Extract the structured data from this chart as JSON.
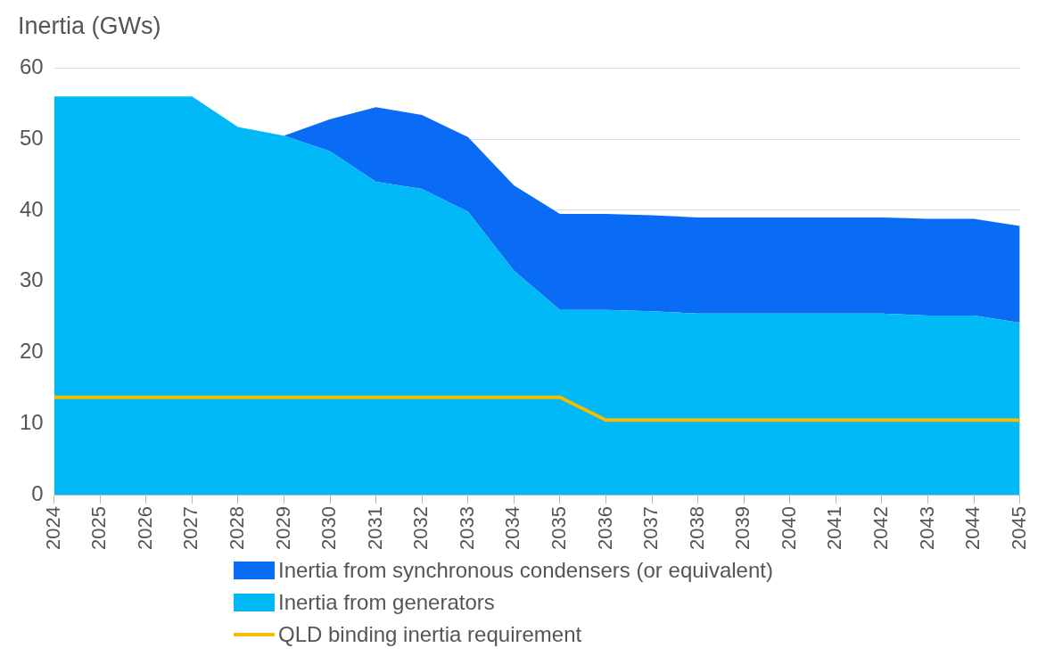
{
  "chart_data": {
    "type": "area",
    "ylabel": "Inertia (GWs)",
    "stacked": true,
    "categories": [
      "2024",
      "2025",
      "2026",
      "2027",
      "2028",
      "2029",
      "2030",
      "2031",
      "2032",
      "2033",
      "2034",
      "2035",
      "2036",
      "2037",
      "2038",
      "2039",
      "2040",
      "2041",
      "2042",
      "2043",
      "2044",
      "2045"
    ],
    "series": [
      {
        "name": "Inertia from generators",
        "color": "#00b9f6",
        "values": [
          56,
          56,
          56,
          56,
          51.7,
          50.5,
          48.3,
          44,
          43,
          39.8,
          31.5,
          26,
          26,
          25.8,
          25.5,
          25.5,
          25.5,
          25.5,
          25.5,
          25.2,
          25.2,
          24.2
        ]
      },
      {
        "name": "Inertia from synchronous condensers (or equivalent)",
        "color": "#0a6cf4",
        "values": [
          null,
          null,
          null,
          null,
          null,
          0,
          4.5,
          10.5,
          10.4,
          10.5,
          12,
          13.5,
          13.5,
          13.5,
          13.5,
          13.5,
          13.5,
          13.5,
          13.5,
          13.6,
          13.6,
          13.6
        ]
      },
      {
        "name": "QLD binding inertia requirement",
        "type": "line",
        "color": "#f5bd00",
        "values": [
          13.7,
          13.7,
          13.7,
          13.7,
          13.7,
          13.7,
          13.7,
          13.7,
          13.7,
          13.7,
          13.7,
          13.7,
          10.5,
          10.5,
          10.5,
          10.5,
          10.5,
          10.5,
          10.5,
          10.5,
          10.5,
          10.5
        ]
      }
    ],
    "ylim": [
      0,
      60
    ],
    "yticks": [
      0,
      10,
      20,
      30,
      40,
      50,
      60
    ],
    "grid": "y",
    "legend": "bottom",
    "marker": "none"
  }
}
